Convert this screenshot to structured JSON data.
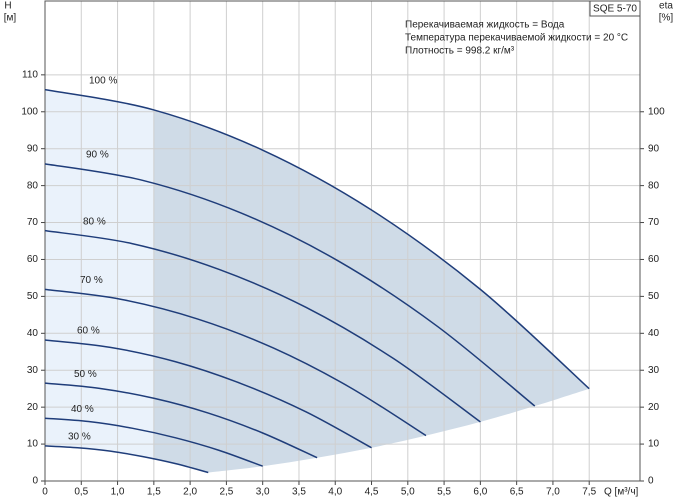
{
  "chart_data": {
    "type": "line",
    "box_label": "SQE 5-70",
    "annotations": [
      "Перекачиваемая жидкость = Вода",
      "Температура перекачиваемой жидкости = 20 °C",
      "Плотность = 998.2 кг/м³"
    ],
    "ylabel": "H",
    "yunit": "[м]",
    "y2label": "eta",
    "y2unit": "[%]",
    "xlabel": "Q [м³/ч]",
    "xlim": [
      0,
      8.2
    ],
    "ylim": [
      0,
      130
    ],
    "y2lim": [
      0,
      130
    ],
    "xticks": [
      0,
      {
        "value": 0.5,
        "label": "0,5"
      },
      {
        "value": 1.0,
        "label": "1,0"
      },
      {
        "value": 1.5,
        "label": "1,5"
      },
      {
        "value": 2.0,
        "label": "2,0"
      },
      {
        "value": 2.5,
        "label": "2,5"
      },
      {
        "value": 3.0,
        "label": "3,0"
      },
      {
        "value": 3.5,
        "label": "3,5"
      },
      {
        "value": 4.0,
        "label": "4,0"
      },
      {
        "value": 4.5,
        "label": "4,5"
      },
      {
        "value": 5.0,
        "label": "5,0"
      },
      {
        "value": 5.5,
        "label": "5,5"
      },
      {
        "value": 6.0,
        "label": "6,0"
      },
      {
        "value": 6.5,
        "label": "6,5"
      },
      {
        "value": 7.0,
        "label": "7,0"
      },
      {
        "value": 7.5,
        "label": "7,5"
      }
    ],
    "yticks": [
      0,
      10,
      20,
      30,
      40,
      50,
      60,
      70,
      80,
      90,
      100,
      110
    ],
    "y2ticks": [
      0,
      10,
      20,
      30,
      40,
      50,
      60,
      70,
      80,
      90,
      100
    ],
    "grid": true,
    "area_color": "#cfdbe7",
    "area_color_light": "#eaf2fb",
    "area_from": 1.5,
    "series": [
      {
        "name": "100 %",
        "color": "#1f3d7a",
        "x": [
          0,
          1.5,
          3.0,
          4.5,
          6.0,
          7.5
        ],
        "values": [
          106,
          100.5,
          89.6,
          73.4,
          51.9,
          25
        ]
      },
      {
        "name": "90 %",
        "color": "#1f3d7a",
        "x": [
          0,
          1.35,
          2.7,
          4.05,
          5.4,
          6.75
        ],
        "values": [
          85.9,
          81.4,
          72.6,
          59.5,
          42.0,
          20.3
        ]
      },
      {
        "name": "80 %",
        "color": "#1f3d7a",
        "x": [
          0,
          1.2,
          2.4,
          3.6,
          4.8,
          6.0
        ],
        "values": [
          67.8,
          64.3,
          57.3,
          47.0,
          33.2,
          16.0
        ]
      },
      {
        "name": "70 %",
        "color": "#1f3d7a",
        "x": [
          0,
          1.05,
          2.1,
          3.15,
          4.2,
          5.25
        ],
        "values": [
          51.9,
          49.2,
          43.9,
          36.0,
          25.4,
          12.3
        ]
      },
      {
        "name": "60 %",
        "color": "#1f3d7a",
        "x": [
          0,
          0.9,
          1.8,
          2.7,
          3.6,
          4.5
        ],
        "values": [
          38.2,
          36.2,
          32.3,
          26.4,
          18.7,
          9.0
        ]
      },
      {
        "name": "50 %",
        "color": "#1f3d7a",
        "x": [
          0,
          0.75,
          1.5,
          2.25,
          3.0,
          3.75
        ],
        "values": [
          26.5,
          25.1,
          22.4,
          18.4,
          13.0,
          6.3
        ]
      },
      {
        "name": "40 %",
        "color": "#1f3d7a",
        "x": [
          0,
          0.6,
          1.2,
          1.8,
          2.4,
          3.0
        ],
        "values": [
          17.0,
          16.1,
          14.3,
          11.7,
          8.3,
          4.0
        ]
      },
      {
        "name": "30 %",
        "color": "#1f3d7a",
        "x": [
          0,
          0.45,
          0.9,
          1.35,
          1.8,
          2.25
        ],
        "values": [
          9.5,
          9.0,
          8.1,
          6.6,
          4.7,
          2.3
        ]
      }
    ]
  }
}
